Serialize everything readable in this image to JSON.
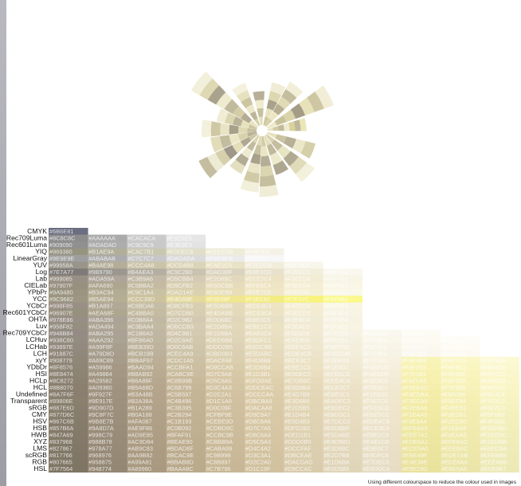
{
  "chart_data": {
    "type": "heatmap",
    "caption": "Using different colourspace to reduce the colour used in images",
    "rows": [
      {
        "name": "CMYK",
        "cells": [
          "#6B6E81"
        ]
      },
      {
        "name": "Rec709Luma",
        "cells": [
          "#8C8C8C",
          "#AAAAAA",
          "#CACACA",
          "#E6E6E6"
        ]
      },
      {
        "name": "Rec601Luma",
        "cells": [
          "#909090",
          "#ADADAD",
          "#C9C9C9",
          "#E3E3E3"
        ]
      },
      {
        "name": "YIQ",
        "cells": [
          "#969380",
          "#B1AE9A",
          "#CAC7B1",
          "#E0DEC8",
          "#EEECD8",
          "#F4F2E6"
        ]
      },
      {
        "name": "LinearGray",
        "cells": [
          "#9E9E9E",
          "#ABABAB",
          "#C7C7C7",
          "#DADADA",
          "#EBEBEB",
          "#F7F7F7"
        ]
      },
      {
        "name": "YUV",
        "cells": [
          "#99958A",
          "#B4AE98",
          "#CCC4A8",
          "#DCD4B8",
          "#EAE2C5",
          "#F2EDDB",
          "#F8F5EA"
        ]
      },
      {
        "name": "Log",
        "cells": [
          "#7E7A77",
          "#9B9790",
          "#B4AEA3",
          "#C9C2B0",
          "#DAD3BF",
          "#E8E1CD",
          "#F2EEDC",
          "#F9F7EE"
        ]
      },
      {
        "name": "Lab",
        "cells": [
          "#999085",
          "#ADA59A",
          "#C3B9A6",
          "#D5CBB4",
          "#E2D8BC",
          "#ECE2C4",
          "#F3ECD4",
          "#F8F4E6"
        ]
      },
      {
        "name": "CIELab",
        "cells": [
          "#97907F",
          "#AFA690",
          "#C5BBA2",
          "#D9CFB2",
          "#E6DCBB",
          "#EFE5C4",
          "#F5EED4",
          "#FAF6E5"
        ]
      },
      {
        "name": "YPbPr",
        "cells": [
          "#9A9480",
          "#B3AC94",
          "#C9C1A4",
          "#DAD1AE",
          "#E8DEB8",
          "#EFE7C5",
          "#F5F0D6",
          "#FAF8E8"
        ]
      },
      {
        "name": "YCC",
        "cells": [
          "#9C9682",
          "#B5AE94",
          "#CCC39D",
          "#E4DA9E",
          "#F0E68F",
          "#F3EC82",
          "#F7F37C",
          "#FAF98A"
        ]
      },
      {
        "name": "YCbCr",
        "cells": [
          "#998F85",
          "#B1A897",
          "#C6BDA6",
          "#D8CFB3",
          "#E5DBBB",
          "#EDE4C4",
          "#F4EDD4",
          "#F9F5E4"
        ]
      },
      {
        "name": "Rec601YCbCr",
        "cells": [
          "#96907E",
          "#AEA68F",
          "#C4BBA0",
          "#D7CDB0",
          "#E4DABB",
          "#ECE3C4",
          "#F3ECD3",
          "#F8F4E4"
        ]
      },
      {
        "name": "OHTA",
        "cells": [
          "#978E86",
          "#ABA396",
          "#C0B8A4",
          "#D2C9B2",
          "#E0D6BC",
          "#E8E0C6",
          "#F0EBD4",
          "#F7F3E4"
        ]
      },
      {
        "name": "Luv",
        "cells": [
          "#958F82",
          "#ADA494",
          "#C3BAA4",
          "#D6CCB3",
          "#E2D8BA",
          "#EBE1C3",
          "#F2EAD2",
          "#F8F3E2"
        ]
      },
      {
        "name": "Rec709YCbCr",
        "cells": [
          "#948B84",
          "#ABA295",
          "#C1B6A3",
          "#D4C9B1",
          "#E1D6BA",
          "#EAE0C4",
          "#F1E9D3",
          "#F7F2E3",
          "#FAF8EE",
          "#FCFBF4"
        ]
      },
      {
        "name": "LCHuv",
        "cells": [
          "#938C80",
          "#AAA292",
          "#BFB6A0",
          "#D2C8AE",
          "#DFD5B8",
          "#E8DFC1",
          "#EFE8D0",
          "#F5F1E1",
          "#F9F6EA",
          "#FCFAF2",
          "#FEFCF6"
        ]
      },
      {
        "name": "LCHab",
        "cells": [
          "#93897E",
          "#A99F8F",
          "#BEB39D",
          "#D0C6AB",
          "#DDD2B5",
          "#E6DCBE",
          "#EEE6CD",
          "#F4EFDD",
          "#F8F4E6",
          "#FBF8EF",
          "#FDFBF4"
        ]
      },
      {
        "name": "LCH",
        "cells": [
          "#91887C",
          "#A79D8D",
          "#BCB19B",
          "#CEC4A9",
          "#DBD0B3",
          "#E5DABC",
          "#EDE4CB",
          "#F3EDDB",
          "#F7F3E4",
          "#FAF8EE",
          "#FCFAF2"
        ]
      },
      {
        "name": "xyY",
        "cells": [
          "#908779",
          "#A69C89",
          "#BBAF97",
          "#CDC1A5",
          "#DACFAF",
          "#E4D8B8",
          "#ECE3C7",
          "#F2EBD6",
          "#F7F1E1",
          "#F8F4B8",
          "#FAF7C5",
          "#FBF9D4"
        ]
      },
      {
        "name": "YDbDr",
        "cells": [
          "#8F8576",
          "#A59986",
          "#BAAD94",
          "#CCBFA1",
          "#D9CCAB",
          "#E3D6B4",
          "#EBE1C3",
          "#F1E9D2",
          "#F6EFDD",
          "#F8F2B5",
          "#FAF6C2",
          "#FBF8D0"
        ]
      },
      {
        "name": "HSI",
        "cells": [
          "#8E8474",
          "#A49884",
          "#B8AB92",
          "#CABC9E",
          "#D7C9A8",
          "#E1D3B1",
          "#E9DEC0",
          "#EFE6CE",
          "#F4EDD9",
          "#F7F1B1",
          "#F9F4BE",
          "#FAF7CC"
        ]
      },
      {
        "name": "HCLp",
        "cells": [
          "#8C8272",
          "#A29582",
          "#B6A88F",
          "#C8B99B",
          "#D5C6A5",
          "#DFD0AE",
          "#E7DBBC",
          "#EEE4CA",
          "#F3EBD5",
          "#F6EFAE",
          "#F8F3BB",
          "#FAF6C9"
        ]
      },
      {
        "name": "HCL",
        "cells": [
          "#8B8070",
          "#A09380",
          "#B5A68D",
          "#C6B799",
          "#D3C4A3",
          "#DDCEAC",
          "#E5D9BA",
          "#ECE2C7",
          "#F2E9D2",
          "#F5EEAC",
          "#F7F2B9",
          "#F9F5C6"
        ]
      },
      {
        "name": "Undefined",
        "cells": [
          "#8A7F6F",
          "#9F927F",
          "#B3A48B",
          "#C5B597",
          "#D2C2A1",
          "#DCCCAA",
          "#E4D7B8",
          "#EBE0C5",
          "#F1E8D0",
          "#F4EDAA",
          "#F6F0B6",
          "#F8F4C4"
        ]
      },
      {
        "name": "Transparent",
        "cells": [
          "#89806E",
          "#9E917E",
          "#B2A38A",
          "#C4B496",
          "#D1C1A0",
          "#DBCBA9",
          "#E3D6B6",
          "#EADFC3",
          "#F0E7CE",
          "#F3ECA8",
          "#F5EFB4",
          "#F7F3C2"
        ]
      },
      {
        "name": "sRGB",
        "cells": [
          "#887E6D",
          "#9D907D",
          "#B1A289",
          "#C3B395",
          "#D0C09F",
          "#DACAA8",
          "#E2D5B5",
          "#E9DEC2",
          "#EFE6CD",
          "#F2EBA6",
          "#F4EEB2",
          "#F6F2C0"
        ]
      },
      {
        "name": "CMY",
        "cells": [
          "#877D6C",
          "#9C8F7C",
          "#B0A188",
          "#C2B294",
          "#CFBF9E",
          "#D9C9A7",
          "#E1D4B4",
          "#E8DDC1",
          "#EEE5CC",
          "#F1EAA5",
          "#F3EDB1",
          "#F5F1BF"
        ]
      },
      {
        "name": "HSV",
        "cells": [
          "#867C6B",
          "#9B8E7B",
          "#AFA087",
          "#C1B193",
          "#CEBE9D",
          "#D8C8A6",
          "#E0D3B3",
          "#E7DCC0",
          "#EDE4CB",
          "#F0E9A4",
          "#F2ECB0",
          "#F4F0BE"
        ]
      },
      {
        "name": "HSB",
        "cells": [
          "#857B6A",
          "#9A8D7A",
          "#AE9F86",
          "#C0B092",
          "#CDBD9C",
          "#D7C7A5",
          "#DFD2B2",
          "#E6DBBF",
          "#ECE3CA",
          "#EFE8A3",
          "#F1EBAF",
          "#F3EFBD"
        ]
      },
      {
        "name": "HWB",
        "cells": [
          "#847A69",
          "#998C79",
          "#AD9E85",
          "#BFAF91",
          "#CCBC9B",
          "#D6C6A4",
          "#DED1B1",
          "#E5DABE",
          "#EBE2C9",
          "#EEE7A2",
          "#F0EAAE",
          "#F2EEBC"
        ]
      },
      {
        "name": "XYZ",
        "cells": [
          "#837968",
          "#988B78",
          "#AC9D84",
          "#BEAE90",
          "#CBBB9A",
          "#D5C5A3",
          "#DDD0B0",
          "#E4D9BD",
          "#EAE1C8",
          "#EDE6A1",
          "#EFE9AD",
          "#F1EDBB"
        ]
      },
      {
        "name": "LMS",
        "cells": [
          "#827867",
          "#978A77",
          "#AB9C83",
          "#BDAD8F",
          "#CABA99",
          "#D4C4A2",
          "#DCCFAF",
          "#E3D8BC",
          "#E9E0C7",
          "#ECE5A0",
          "#EEE8AC",
          "#F0ECBA"
        ]
      },
      {
        "name": "scRGB",
        "cells": [
          "#817766",
          "#968976",
          "#AA9B82",
          "#BCAC8E",
          "#C9B998",
          "#D3C3A1",
          "#DBCEAE",
          "#E2D7BB",
          "#E8DFC6",
          "#EBE49F",
          "#EDE7AB",
          "#EFEBB9"
        ]
      },
      {
        "name": "RGB",
        "cells": [
          "#807665",
          "#958875",
          "#A99A81",
          "#BBAB8D",
          "#C8B897",
          "#D2C2A0",
          "#DACDAD",
          "#E1D6BA",
          "#E7DEC5",
          "#EAE39E",
          "#ECE6AA",
          "#EEEAB8"
        ]
      },
      {
        "name": "HSL",
        "cells": [
          "#7F7564",
          "#948774",
          "#A89980",
          "#BAAA8C",
          "#C7B796",
          "#D1C19F",
          "#D9CCAC",
          "#E0D5B9",
          "#E6DDC4",
          "#E9E29D",
          "#EBE5A9",
          "#EDE9B7"
        ]
      }
    ],
    "burst": {
      "rays": [
        {
          "angle": 8,
          "length": 0.55,
          "colors": [
            "#E7E3C9",
            "#D3CCA6",
            "#C2BB9A",
            "#EFEBD2",
            "#D9D29B",
            "#BFB79A",
            "#E9E6B8"
          ]
        },
        {
          "angle": 28,
          "length": 1.0,
          "colors": [
            "#EEE9C6",
            "#C9C19C",
            "#DAD4AB",
            "#A49C86",
            "#E7E2B9",
            "#CFC7A3",
            "#F1EDD7"
          ]
        },
        {
          "angle": 52,
          "length": 0.72,
          "colors": [
            "#D6CFA8",
            "#EBE6C4",
            "#B6AD93",
            "#E0DAB5",
            "#C4BD9F",
            "#F2EFD9"
          ]
        },
        {
          "angle": 70,
          "length": 0.62,
          "colors": [
            "#CFC8A2",
            "#E8E3BF",
            "#A9A18B",
            "#DED8B1",
            "#F0ECD5"
          ]
        },
        {
          "angle": 95,
          "length": 0.48,
          "colors": [
            "#E4DFBD",
            "#C8C19E",
            "#EFEBCF",
            "#B8B097"
          ]
        },
        {
          "angle": 118,
          "length": 0.64,
          "colors": [
            "#D8D1AB",
            "#BDB599",
            "#ECE7C6",
            "#CCC5A2",
            "#E6E1C1",
            "#F4F1DE"
          ]
        },
        {
          "angle": 142,
          "length": 1.08,
          "colors": [
            "#E9E4C1",
            "#B3AB92",
            "#D4CDA7",
            "#C1BA9D",
            "#EFEBD0",
            "#A9A28C",
            "#DED8B3",
            "#F2EFDA"
          ]
        },
        {
          "angle": 160,
          "length": 0.58,
          "colors": [
            "#CDC6A1",
            "#E7E2BE",
            "#BAB298",
            "#DCD6B0",
            "#F0ECD6"
          ]
        },
        {
          "angle": 178,
          "length": 0.78,
          "colors": [
            "#C6BE9C",
            "#DFD9B4",
            "#A7A08A",
            "#E9E4C3",
            "#CFC8A5",
            "#F3F0DC"
          ]
        },
        {
          "angle": 196,
          "length": 0.66,
          "colors": [
            "#B9B198",
            "#D8D1AC",
            "#EBE6C5",
            "#C3BC9F",
            "#E2DCB8"
          ]
        },
        {
          "angle": 214,
          "length": 0.92,
          "colors": [
            "#CDC7A6",
            "#B0A892",
            "#E4DEBA",
            "#9F988A",
            "#D6D0AC",
            "#EEEBD4",
            "#C4BDA0"
          ]
        },
        {
          "angle": 236,
          "length": 0.6,
          "colors": [
            "#DCD6B2",
            "#C2BB9D",
            "#EEEAD0",
            "#B3AB94",
            "#E4DFBE"
          ]
        },
        {
          "angle": 258,
          "length": 0.8,
          "colors": [
            "#E0DAB6",
            "#C9C2A1",
            "#A8A18B",
            "#E9E5C6",
            "#D1CAA7",
            "#F2EFDA"
          ]
        },
        {
          "angle": 276,
          "length": 0.86,
          "colors": [
            "#D2CBA7",
            "#EAE5C3",
            "#B5AE96",
            "#DBD5B1",
            "#C6BF9F",
            "#F0EDD7"
          ]
        },
        {
          "angle": 296,
          "length": 0.58,
          "colors": [
            "#E3DEBB",
            "#C0B99C",
            "#EDE9CC",
            "#AEA790"
          ]
        },
        {
          "angle": 316,
          "length": 0.84,
          "colors": [
            "#D9D3AE",
            "#C4BDA0",
            "#E8E3C1",
            "#B1AA93",
            "#E0DBB8",
            "#F3F0DC"
          ]
        },
        {
          "angle": 338,
          "length": 0.7,
          "colors": [
            "#E6E1BE",
            "#CBC4A2",
            "#B7AF96",
            "#EBE7C9",
            "#D5CFAA"
          ]
        }
      ]
    }
  }
}
